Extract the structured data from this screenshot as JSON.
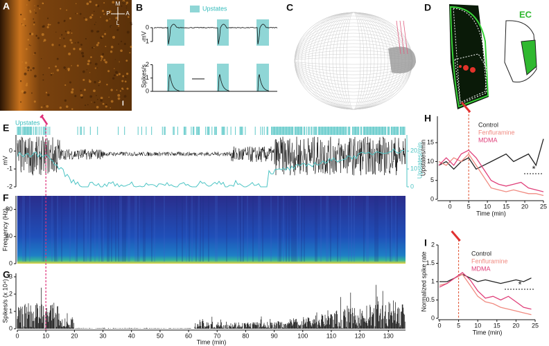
{
  "panel_a": {
    "label": "A",
    "compass": [
      "M",
      "P",
      "A",
      "L"
    ],
    "scale": "I"
  },
  "panel_b": {
    "label": "B",
    "legend": "Upstates",
    "y_label_top": "mV",
    "yticks_top": [
      0,
      -1
    ],
    "y_label_bottom": "Spikes/s",
    "yticks_bottom": [
      2,
      1,
      0
    ]
  },
  "panel_c": {
    "label": "C"
  },
  "panel_d": {
    "label": "D",
    "region": "EC"
  },
  "panel_e": {
    "label": "E",
    "legend": "Upstates",
    "y_label": "mV",
    "ylim": [
      -2,
      0.9
    ],
    "yticks": [
      0,
      -1,
      -2
    ],
    "y2_label": "Upstates/min",
    "y2lim": [
      0,
      29
    ],
    "y2ticks": [
      0,
      10,
      20
    ]
  },
  "panel_f": {
    "label": "F",
    "y_label": "Frequency (Hz)",
    "ylim": [
      0,
      100
    ],
    "yticks": [
      0,
      40,
      80
    ]
  },
  "panel_g": {
    "label": "G",
    "y_label": "Spikes/s (x 10⁴)",
    "ylim": [
      0,
      3.2
    ],
    "yticks": [
      0,
      1,
      2,
      3
    ],
    "x_label": "Time (min)",
    "xlim": [
      0,
      136
    ],
    "xticks": [
      0,
      10,
      20,
      30,
      40,
      50,
      60,
      70,
      80,
      90,
      100,
      110,
      120,
      130
    ],
    "injection": 10
  },
  "panel_h": {
    "label": "H",
    "type": "line",
    "y_label": "Upstates/min",
    "x_label": "Time (min)",
    "xlim": [
      -3,
      25
    ],
    "ylim": [
      0,
      22
    ],
    "xticks": [
      0,
      5,
      10,
      15,
      20,
      25
    ],
    "yticks": [
      0,
      5,
      10,
      15
    ],
    "injection": 5,
    "annotation": "*",
    "x": [
      -3,
      -1,
      1,
      3,
      5,
      7,
      9,
      11,
      13,
      15,
      17,
      19,
      21,
      23,
      25
    ],
    "series": [
      {
        "name": "Control",
        "color": "#222222",
        "values": [
          9,
          10,
          8,
          10,
          11,
          8,
          9,
          10,
          11,
          12,
          10,
          11,
          12,
          9,
          16
        ]
      },
      {
        "name": "Fenfluramine",
        "color": "#f08a80",
        "values": [
          10,
          9,
          11,
          10,
          12,
          9,
          6,
          3,
          2.5,
          2,
          2.5,
          2,
          1.5,
          1.5,
          1
        ]
      },
      {
        "name": "MDMA",
        "color": "#e0407a",
        "values": [
          9,
          11,
          9,
          12,
          13,
          11,
          8,
          5,
          4,
          3.5,
          4,
          4.5,
          3,
          2.5,
          2
        ]
      }
    ]
  },
  "panel_i": {
    "label": "I",
    "type": "line",
    "y_label": "Normalized spike rate",
    "x_label": "Time (min)",
    "xlim": [
      0,
      25
    ],
    "ylim": [
      0,
      2
    ],
    "xticks": [
      0,
      5,
      10,
      15,
      20,
      25
    ],
    "yticks": [
      0,
      0.5,
      1,
      1.5,
      2
    ],
    "injection": 5,
    "annotation": "*",
    "x": [
      0,
      2,
      4,
      6,
      8,
      10,
      12,
      14,
      16,
      18,
      20,
      22,
      24
    ],
    "series": [
      {
        "name": "Control",
        "color": "#222222",
        "values": [
          1.0,
          1.0,
          1.1,
          1.2,
          1.1,
          1.0,
          1.05,
          1.0,
          0.95,
          1.0,
          1.05,
          1.0,
          1.1
        ]
      },
      {
        "name": "Fenfluramine",
        "color": "#f08a80",
        "values": [
          0.9,
          0.95,
          1.1,
          1.2,
          0.9,
          0.6,
          0.45,
          0.4,
          0.3,
          0.25,
          0.2,
          0.15,
          0.1
        ]
      },
      {
        "name": "MDMA",
        "color": "#e0407a",
        "values": [
          0.85,
          0.95,
          1.1,
          1.25,
          1.05,
          0.75,
          0.55,
          0.6,
          0.5,
          0.6,
          0.45,
          0.3,
          0.25
        ]
      }
    ]
  }
}
